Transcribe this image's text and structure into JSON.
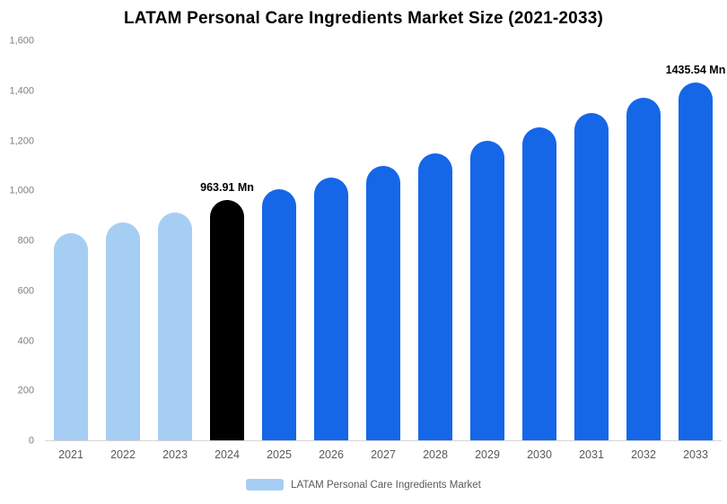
{
  "chart_data": {
    "type": "bar",
    "title": "LATAM Personal Care Ingredients Market Size (2021-2033)",
    "xlabel": "",
    "ylabel": "",
    "categories": [
      "2021",
      "2022",
      "2023",
      "2024",
      "2025",
      "2026",
      "2027",
      "2028",
      "2029",
      "2030",
      "2031",
      "2032",
      "2033"
    ],
    "values": [
      830,
      872,
      915,
      963.91,
      1007,
      1053,
      1100,
      1150,
      1202,
      1256,
      1313,
      1373,
      1435.54
    ],
    "bar_color_keys": [
      "light",
      "light",
      "light",
      "black",
      "blue",
      "blue",
      "blue",
      "blue",
      "blue",
      "blue",
      "blue",
      "blue",
      "blue"
    ],
    "data_labels": [
      "",
      "",
      "",
      "963.91 Mn",
      "",
      "",
      "",
      "",
      "",
      "",
      "",
      "",
      "1435.54 Mn"
    ],
    "ylim": [
      0,
      1600
    ],
    "ytick_step": 200,
    "yticks": [
      "0",
      "200",
      "400",
      "600",
      "800",
      "1,000",
      "1,200",
      "1,400",
      "1,600"
    ],
    "grid": false,
    "legend_position": "bottom",
    "colors": {
      "light": "#A6CEF3",
      "blue": "#1567E8",
      "black": "#000000"
    },
    "legend": [
      {
        "label": "LATAM Personal Care Ingredients Market",
        "color": "#A6CEF3"
      }
    ]
  }
}
